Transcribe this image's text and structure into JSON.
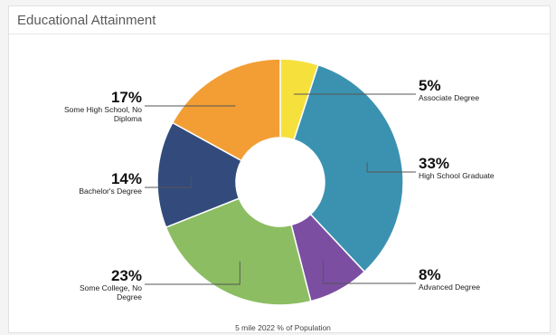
{
  "panel": {
    "title": "Educational Attainment"
  },
  "chart_data": {
    "type": "pie",
    "subtype": "donut",
    "caption": "5 mile 2022 % of Population",
    "slices": [
      {
        "label": "Associate Degree",
        "label_lines": [
          "Associate Degree"
        ],
        "value": 5,
        "display": "5%",
        "color": "#f6e03c"
      },
      {
        "label": "High School Graduate",
        "label_lines": [
          "High School Graduate"
        ],
        "value": 33,
        "display": "33%",
        "color": "#3b92b0"
      },
      {
        "label": "Advanced Degree",
        "label_lines": [
          "Advanced Degree"
        ],
        "value": 8,
        "display": "8%",
        "color": "#7b4ea2"
      },
      {
        "label": "Some College, No Degree",
        "label_lines": [
          "Some College, No",
          "Degree"
        ],
        "value": 23,
        "display": "23%",
        "color": "#8cbd62"
      },
      {
        "label": "Bachelor's Degree",
        "label_lines": [
          "Bachelor's Degree"
        ],
        "value": 14,
        "display": "14%",
        "color": "#324b7c"
      },
      {
        "label": "Some High School, No Diploma",
        "label_lines": [
          "Some High School, No",
          "Diploma"
        ],
        "value": 17,
        "display": "17%",
        "color": "#f29e35"
      }
    ]
  }
}
